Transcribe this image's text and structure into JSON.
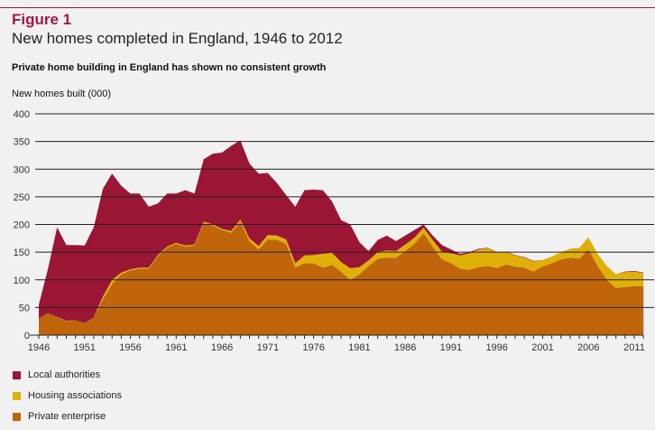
{
  "figure_label": "Figure 1",
  "title": "New homes completed in England, 1946 to 2012",
  "subtitle": "Private home building in England has shown no consistent growth",
  "chart_data": {
    "type": "area",
    "stacked": true,
    "title": "New homes completed in England, 1946 to 2012",
    "ylabel": "New homes built (000)",
    "xlabel": "",
    "ylim": [
      0,
      400
    ],
    "xlim": [
      1946,
      2012
    ],
    "yticks": [
      0,
      50,
      100,
      150,
      200,
      250,
      300,
      350,
      400
    ],
    "xtick_labels": [
      "1946",
      "1951",
      "1956",
      "1961",
      "1966",
      "1971",
      "1976",
      "1981",
      "1986",
      "1991",
      "1996",
      "2001",
      "2006",
      "2011"
    ],
    "grid": "horizontal",
    "legend_placement": "bottom-left",
    "x_start": 1946,
    "series": [
      {
        "name": "Private enterprise",
        "color": "#c0650b",
        "values": [
          30,
          40,
          33,
          25,
          27,
          22,
          32,
          65,
          92,
          110,
          117,
          120,
          120,
          143,
          158,
          165,
          160,
          162,
          203,
          198,
          190,
          185,
          205,
          170,
          155,
          173,
          172,
          165,
          122,
          130,
          130,
          122,
          127,
          115,
          100,
          110,
          125,
          138,
          140,
          140,
          152,
          165,
          184,
          160,
          137,
          130,
          120,
          118,
          123,
          125,
          121,
          128,
          124,
          122,
          115,
          124,
          130,
          137,
          140,
          138,
          155,
          125,
          100,
          85,
          87,
          89,
          88
        ]
      },
      {
        "name": "Housing associations",
        "color": "#dfb008",
        "values": [
          0,
          0,
          0,
          1,
          0,
          0,
          0,
          5,
          8,
          3,
          2,
          2,
          2,
          2,
          2,
          2,
          2,
          2,
          2,
          2,
          2,
          3,
          4,
          5,
          6,
          8,
          8,
          8,
          8,
          14,
          15,
          25,
          22,
          17,
          21,
          13,
          10,
          12,
          13,
          12,
          12,
          11,
          10,
          12,
          14,
          18,
          24,
          30,
          32,
          32,
          28,
          22,
          20,
          18,
          18,
          12,
          12,
          13,
          16,
          20,
          22,
          22,
          25,
          25,
          27,
          26,
          24
        ]
      },
      {
        "name": "Local authorities",
        "color": "#9b1535",
        "values": [
          25,
          80,
          162,
          137,
          136,
          140,
          163,
          195,
          192,
          157,
          137,
          134,
          110,
          93,
          96,
          89,
          100,
          92,
          113,
          128,
          138,
          154,
          143,
          135,
          131,
          112,
          95,
          80,
          102,
          118,
          118,
          115,
          93,
          76,
          79,
          45,
          17,
          22,
          27,
          18,
          16,
          14,
          6,
          8,
          12,
          7,
          3,
          2,
          1,
          1,
          1,
          1,
          1,
          1,
          1,
          0,
          0,
          0,
          0,
          0,
          0,
          0,
          0,
          0,
          1,
          1,
          1
        ]
      }
    ]
  }
}
